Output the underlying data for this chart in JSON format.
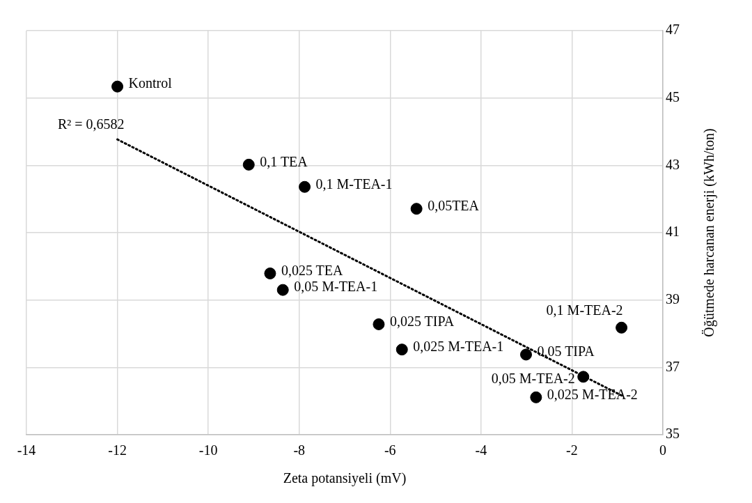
{
  "chart_data": {
    "type": "scatter",
    "xlabel": "Zeta potansiyeli (mV)",
    "ylabel": "Öğütmede harcanan enerji (kWh/ton)",
    "xlim": [
      -14,
      0
    ],
    "xticks": [
      -14,
      -12,
      -10,
      -8,
      -6,
      -4,
      -2,
      0
    ],
    "ylim": [
      35,
      47
    ],
    "yticks": [
      35,
      37,
      39,
      41,
      43,
      45,
      47
    ],
    "grid": true,
    "legend": false,
    "annotations": [
      {
        "text": "R² = 0,6582",
        "x": -12,
        "y": 43.77
      }
    ],
    "series": [
      {
        "name": "Kontrol",
        "color": "#000000",
        "marker": "circle",
        "x": [
          -12.0
        ],
        "values": [
          45.34
        ]
      },
      {
        "name": "0,1 TEA",
        "color": "#000000",
        "marker": "circle",
        "x": [
          -9.11
        ],
        "values": [
          43.02
        ]
      },
      {
        "name": "0,1 M-TEA-1",
        "color": "#000000",
        "marker": "circle",
        "x": [
          -7.88
        ],
        "values": [
          42.36
        ]
      },
      {
        "name": "0,05TEA",
        "color": "#000000",
        "marker": "circle",
        "x": [
          -5.42
        ],
        "values": [
          41.71
        ]
      },
      {
        "name": "0,025 TEA",
        "color": "#000000",
        "marker": "circle",
        "x": [
          -8.64
        ],
        "values": [
          39.79
        ]
      },
      {
        "name": "0,05 M-TEA-1",
        "color": "#000000",
        "marker": "circle",
        "x": [
          -8.36
        ],
        "values": [
          39.3
        ]
      },
      {
        "name": "0,025 TIPA",
        "color": "#000000",
        "marker": "circle",
        "x": [
          -6.25
        ],
        "values": [
          38.28
        ]
      },
      {
        "name": "0,025 M-TEA-1",
        "color": "#000000",
        "marker": "circle",
        "x": [
          -5.74
        ],
        "values": [
          37.53
        ]
      },
      {
        "name": "0,05 TIPA",
        "color": "#000000",
        "marker": "circle",
        "x": [
          -3.01
        ],
        "values": [
          37.38
        ]
      },
      {
        "name": "0,05 M-TEA-2",
        "color": "#000000",
        "marker": "circle",
        "x": [
          -1.75
        ],
        "values": [
          36.72
        ]
      },
      {
        "name": "0,025 M-TEA-2",
        "color": "#000000",
        "marker": "circle",
        "x": [
          -2.79
        ],
        "values": [
          36.11
        ]
      },
      {
        "name": "0,1 M-TEA-2",
        "color": "#000000",
        "marker": "circle",
        "x": [
          -0.91
        ],
        "values": [
          38.18
        ]
      },
      {
        "type": "line",
        "color": "#000000",
        "line_style": "dotted",
        "x": [
          -12,
          -0.9
        ],
        "values": [
          43.77,
          36.16
        ]
      }
    ]
  }
}
